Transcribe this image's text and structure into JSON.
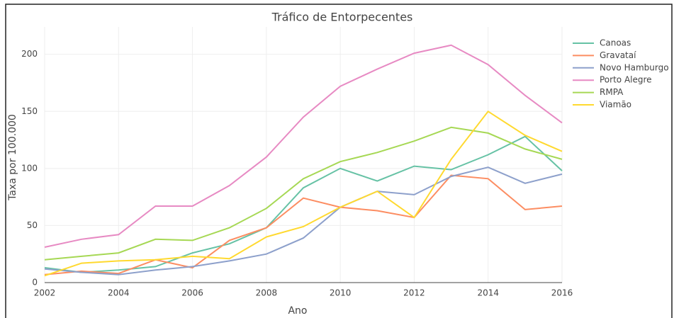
{
  "chart_data": {
    "type": "line",
    "title": "Tráfico de Entorpecentes",
    "x_label": "Ano",
    "y_label": "Taxa por 100.000",
    "x": [
      2002,
      2003,
      2004,
      2005,
      2006,
      2007,
      2008,
      2009,
      2010,
      2011,
      2012,
      2013,
      2014,
      2015,
      2016
    ],
    "xlim": [
      2002,
      2016
    ],
    "xticks": [
      2002,
      2004,
      2006,
      2008,
      2010,
      2012,
      2014,
      2016
    ],
    "ylim": [
      0,
      224
    ],
    "yticks": [
      0,
      50,
      100,
      150,
      200
    ],
    "grid": true,
    "legend": "right",
    "series": [
      {
        "name": "Canoas",
        "color": "#66c2a5",
        "values": [
          13,
          9,
          11,
          14,
          26,
          34,
          48,
          83,
          100,
          89,
          102,
          99,
          112,
          128,
          98
        ]
      },
      {
        "name": "Gravataí",
        "color": "#fc8d62",
        "values": [
          7,
          10,
          8,
          20,
          13,
          37,
          48,
          74,
          66,
          63,
          57,
          94,
          91,
          64,
          67
        ]
      },
      {
        "name": "Novo Hamburgo",
        "color": "#8da0cb",
        "values": [
          12,
          9,
          7,
          11,
          14,
          19,
          25,
          39,
          66,
          80,
          77,
          93,
          101,
          87,
          95
        ]
      },
      {
        "name": "Porto Alegre",
        "color": "#e78ac3",
        "values": [
          31,
          38,
          42,
          67,
          67,
          85,
          110,
          145,
          172,
          187,
          201,
          208,
          191,
          164,
          140
        ]
      },
      {
        "name": "RMPA",
        "color": "#a6d854",
        "values": [
          20,
          23,
          26,
          38,
          37,
          48,
          65,
          91,
          106,
          114,
          124,
          136,
          131,
          117,
          108
        ]
      },
      {
        "name": "Viamão",
        "color": "#ffd92f",
        "values": [
          6,
          17,
          19,
          20,
          23,
          21,
          40,
          49,
          66,
          80,
          57,
          108,
          150,
          129,
          115
        ]
      }
    ]
  }
}
